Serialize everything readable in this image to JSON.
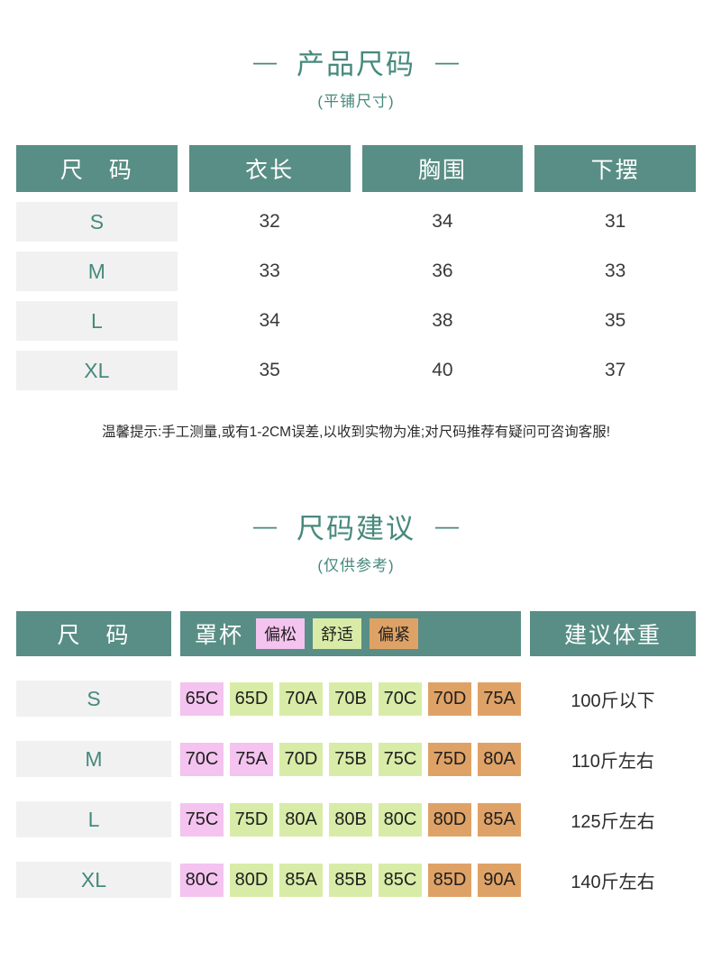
{
  "colors": {
    "teal": "#588e85",
    "teal-text": "#47897c",
    "loose": "#f4c3ef",
    "comfort": "#d8eca7",
    "tight": "#dfa266",
    "row-gray": "#f1f1f1"
  },
  "decor": {
    "dash": "—"
  },
  "section1": {
    "title": "产品尺码",
    "subtitle": "(平铺尺寸)",
    "table": {
      "headers": [
        "尺　码",
        "衣长",
        "胸围",
        "下摆"
      ],
      "rows": [
        {
          "size": "S",
          "values": [
            "32",
            "34",
            "31"
          ]
        },
        {
          "size": "M",
          "values": [
            "33",
            "36",
            "33"
          ]
        },
        {
          "size": "L",
          "values": [
            "34",
            "38",
            "35"
          ]
        },
        {
          "size": "XL",
          "values": [
            "35",
            "40",
            "37"
          ]
        }
      ]
    },
    "note": "温馨提示:手工测量,或有1-2CM误差,以收到实物为准;对尺码推荐有疑问可咨询客服!"
  },
  "section2": {
    "title": "尺码建议",
    "subtitle": "(仅供参考)",
    "table": {
      "size_header": "尺　码",
      "cup_header": "罩杯",
      "weight_header": "建议体重",
      "legend": [
        {
          "label": "偏松",
          "tone": "loose"
        },
        {
          "label": "舒适",
          "tone": "comfort"
        },
        {
          "label": "偏紧",
          "tone": "tight"
        }
      ],
      "rows": [
        {
          "size": "S",
          "weight": "100斤以下",
          "cups": [
            {
              "label": "65C",
              "tone": "loose"
            },
            {
              "label": "65D",
              "tone": "comfort"
            },
            {
              "label": "70A",
              "tone": "comfort"
            },
            {
              "label": "70B",
              "tone": "comfort"
            },
            {
              "label": "70C",
              "tone": "comfort"
            },
            {
              "label": "70D",
              "tone": "tight"
            },
            {
              "label": "75A",
              "tone": "tight"
            }
          ]
        },
        {
          "size": "M",
          "weight": "110斤左右",
          "cups": [
            {
              "label": "70C",
              "tone": "loose"
            },
            {
              "label": "75A",
              "tone": "loose"
            },
            {
              "label": "70D",
              "tone": "comfort"
            },
            {
              "label": "75B",
              "tone": "comfort"
            },
            {
              "label": "75C",
              "tone": "comfort"
            },
            {
              "label": "75D",
              "tone": "tight"
            },
            {
              "label": "80A",
              "tone": "tight"
            }
          ]
        },
        {
          "size": "L",
          "weight": "125斤左右",
          "cups": [
            {
              "label": "75C",
              "tone": "loose"
            },
            {
              "label": "75D",
              "tone": "comfort"
            },
            {
              "label": "80A",
              "tone": "comfort"
            },
            {
              "label": "80B",
              "tone": "comfort"
            },
            {
              "label": "80C",
              "tone": "comfort"
            },
            {
              "label": "80D",
              "tone": "tight"
            },
            {
              "label": "85A",
              "tone": "tight"
            }
          ]
        },
        {
          "size": "XL",
          "weight": "140斤左右",
          "cups": [
            {
              "label": "80C",
              "tone": "loose"
            },
            {
              "label": "80D",
              "tone": "comfort"
            },
            {
              "label": "85A",
              "tone": "comfort"
            },
            {
              "label": "85B",
              "tone": "comfort"
            },
            {
              "label": "85C",
              "tone": "comfort"
            },
            {
              "label": "85D",
              "tone": "tight"
            },
            {
              "label": "90A",
              "tone": "tight"
            }
          ]
        }
      ]
    }
  }
}
